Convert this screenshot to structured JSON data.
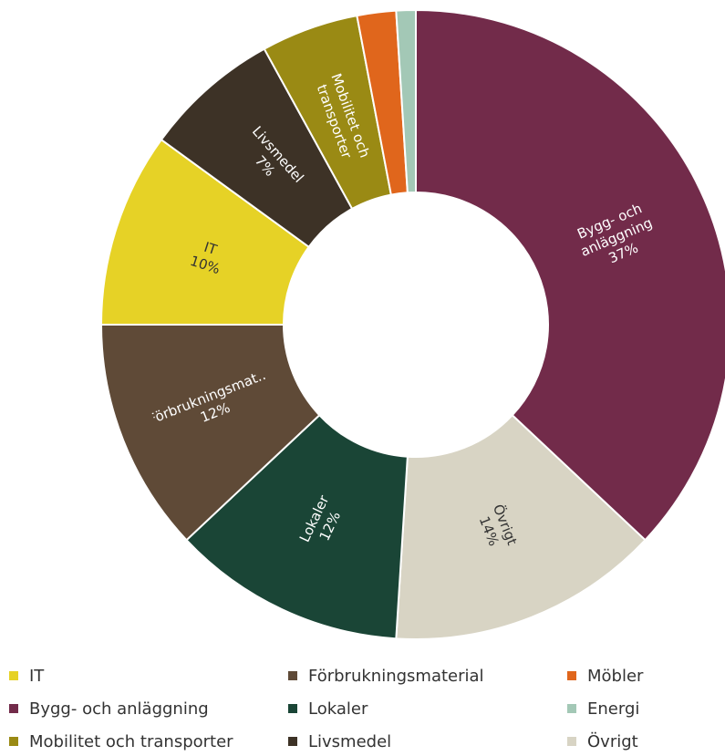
{
  "chart_data": {
    "type": "donut",
    "categories": [
      "Bygg- och anläggning",
      "Övrigt",
      "Lokaler",
      "Förbrukningsmaterial",
      "IT",
      "Livsmedel",
      "Mobilitet och transporter",
      "Möbler",
      "Energi"
    ],
    "values": [
      37,
      14,
      12,
      12,
      10,
      7,
      5,
      2,
      1
    ],
    "value_labels": [
      "37%",
      "14%",
      "12%",
      "12%",
      "10%",
      "7%",
      null,
      null,
      null
    ],
    "slice_labels": [
      "Bygg- och anläggning",
      "Övrigt",
      "Lokaler",
      "Förbrukningsmat...",
      "IT",
      "Livsmedel",
      "Mobilitet och transporter",
      null,
      null
    ],
    "colors": [
      "#722b4a",
      "#d8d4c4",
      "#1a4536",
      "#5f4a37",
      "#e6d226",
      "#3d3226",
      "#9a8a14",
      "#e0661c",
      "#a3c8b6"
    ],
    "label_colors": [
      "#ffffff",
      "#333333",
      "#ffffff",
      "#ffffff",
      "#333333",
      "#ffffff",
      "#ffffff",
      "#ffffff",
      "#ffffff"
    ]
  }
}
